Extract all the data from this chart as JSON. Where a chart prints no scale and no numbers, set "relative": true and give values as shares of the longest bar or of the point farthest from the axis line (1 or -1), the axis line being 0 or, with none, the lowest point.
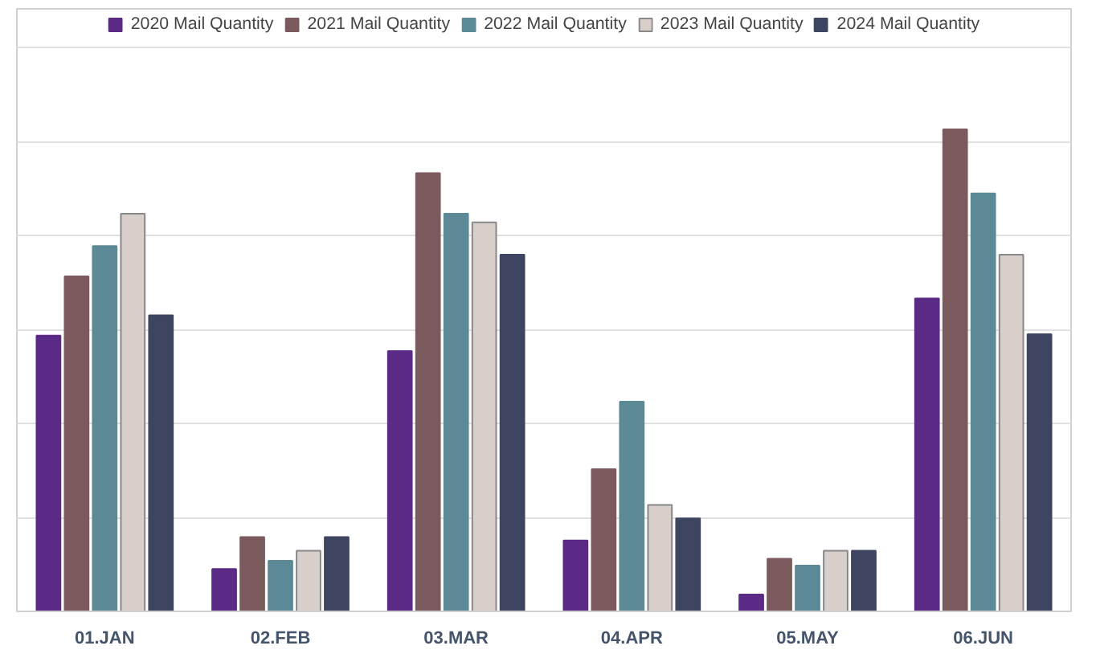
{
  "chart_data": {
    "type": "bar",
    "relative": true,
    "grid": "y",
    "legend": "top",
    "categories": [
      "01.JAN",
      "02.FEB",
      "03.MAR",
      "04.APR",
      "05.MAY",
      "06.JUN"
    ],
    "series": [
      {
        "name": "2020 Mail Quantity",
        "color": "#5b2a86",
        "values": [
          0.572,
          0.088,
          0.54,
          0.147,
          0.035,
          0.649
        ]
      },
      {
        "name": "2021 Mail Quantity",
        "color": "#7b5a5e",
        "values": [
          0.695,
          0.154,
          0.909,
          0.295,
          0.109,
          1.0
        ]
      },
      {
        "name": "2022 Mail Quantity",
        "color": "#5b8a96",
        "values": [
          0.758,
          0.105,
          0.825,
          0.435,
          0.095,
          0.867
        ]
      },
      {
        "name": "2023 Mail Quantity",
        "color": "#d8cfcb",
        "values": [
          0.825,
          0.126,
          0.807,
          0.221,
          0.126,
          0.74
        ]
      },
      {
        "name": "2024 Mail Quantity",
        "color": "#3d4560",
        "values": [
          0.614,
          0.154,
          0.74,
          0.193,
          0.126,
          0.575
        ]
      }
    ]
  }
}
